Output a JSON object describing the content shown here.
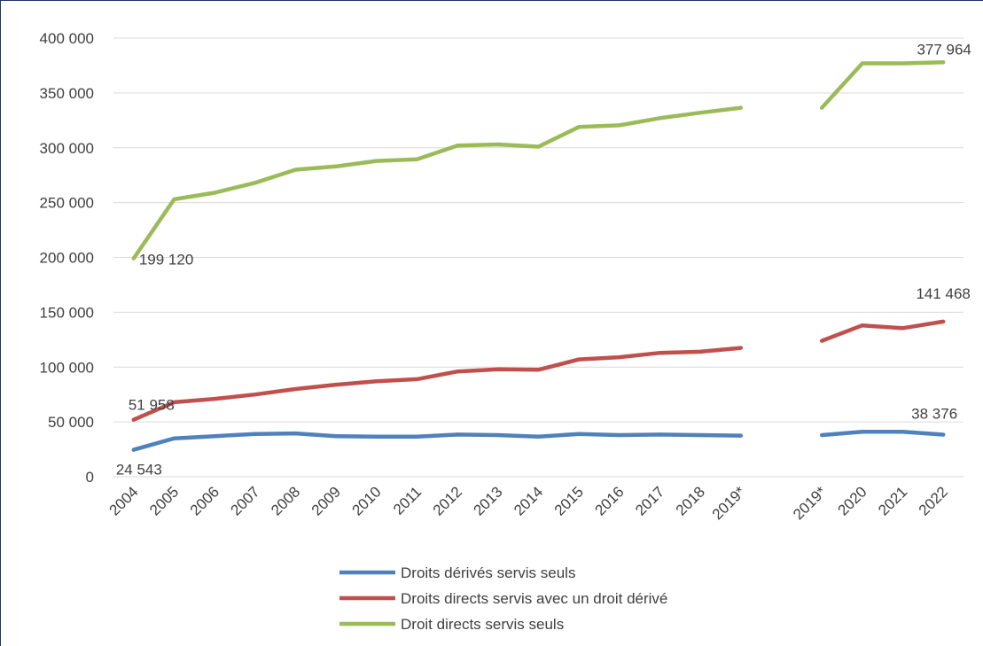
{
  "chart_data": {
    "type": "line",
    "title": "",
    "xlabel": "",
    "ylabel": "",
    "ylim": [
      0,
      400000
    ],
    "yticks": [
      0,
      50000,
      100000,
      150000,
      200000,
      250000,
      300000,
      350000,
      400000
    ],
    "ytick_labels": [
      "0",
      "50 000",
      "100 000",
      "150 000",
      "200 000",
      "250 000",
      "300 000",
      "350 000",
      "400 000"
    ],
    "categories": [
      "2004",
      "2005",
      "2006",
      "2007",
      "2008",
      "2009",
      "2010",
      "2011",
      "2012",
      "2013",
      "2014",
      "2015",
      "2016",
      "2017",
      "2018",
      "2019*",
      "",
      "2019*",
      "2020",
      "2021",
      "2022"
    ],
    "grid": true,
    "legend_position": "bottom",
    "series": [
      {
        "name": "Droits dérivés servis seuls",
        "color": "#4f81bd",
        "values": [
          24543,
          35000,
          37000,
          39000,
          39500,
          37000,
          36500,
          36500,
          38500,
          38000,
          36500,
          39000,
          38000,
          38500,
          38000,
          37500,
          null,
          38000,
          41000,
          41000,
          38376
        ]
      },
      {
        "name": "Droits directs servis avec un droit dérivé",
        "color": "#c0504d",
        "values": [
          51958,
          68000,
          71000,
          75000,
          80000,
          84000,
          87000,
          89000,
          96000,
          98000,
          97500,
          107000,
          109000,
          113000,
          114000,
          117500,
          null,
          124000,
          138000,
          135500,
          141468
        ]
      },
      {
        "name": "Droit directs servis seuls",
        "color": "#9bbb59",
        "values": [
          199120,
          253000,
          259000,
          268000,
          280000,
          283000,
          288000,
          289500,
          302000,
          303000,
          301000,
          319000,
          320500,
          327000,
          332000,
          336500,
          null,
          336500,
          377000,
          377000,
          377964
        ]
      }
    ],
    "annotations": [
      {
        "series": 2,
        "index": 0,
        "text": "199 120"
      },
      {
        "series": 2,
        "index": 20,
        "text": "377 964"
      },
      {
        "series": 1,
        "index": 0,
        "text": "51 958"
      },
      {
        "series": 1,
        "index": 20,
        "text": "141 468"
      },
      {
        "series": 0,
        "index": 0,
        "text": "24 543"
      },
      {
        "series": 0,
        "index": 20,
        "text": "38 376"
      }
    ]
  }
}
